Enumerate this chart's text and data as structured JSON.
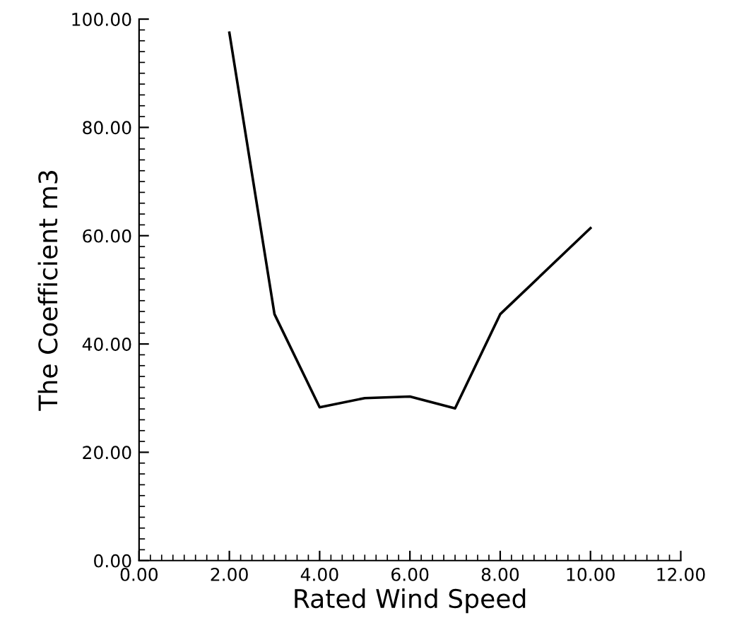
{
  "chart_data": {
    "type": "line",
    "xlabel": "Rated Wind Speed",
    "ylabel": "The Coefficient m3",
    "x": [
      2,
      3,
      4,
      5,
      6,
      7,
      8,
      10
    ],
    "series": [
      {
        "color": "#000000",
        "values": [
          97.5,
          45.5,
          28.3,
          30.0,
          30.3,
          28.1,
          45.5,
          61.4
        ]
      }
    ],
    "xlim": [
      0,
      12
    ],
    "ylim": [
      0,
      100
    ],
    "xticks": [
      {
        "value": 0,
        "label": "0.00"
      },
      {
        "value": 2,
        "label": "2.00"
      },
      {
        "value": 4,
        "label": "4.00"
      },
      {
        "value": 6,
        "label": "6.00"
      },
      {
        "value": 8,
        "label": "8.00"
      },
      {
        "value": 10,
        "label": "10.00"
      },
      {
        "value": 12,
        "label": "12.00"
      }
    ],
    "yticks": [
      {
        "value": 0,
        "label": "0.00"
      },
      {
        "value": 20,
        "label": "20.00"
      },
      {
        "value": 40,
        "label": "40.00"
      },
      {
        "value": 60,
        "label": "60.00"
      },
      {
        "value": 80,
        "label": "80.00"
      },
      {
        "value": 100,
        "label": "100.00"
      }
    ],
    "grid": false,
    "legend": false,
    "marker": "none",
    "line_style": "solid"
  }
}
